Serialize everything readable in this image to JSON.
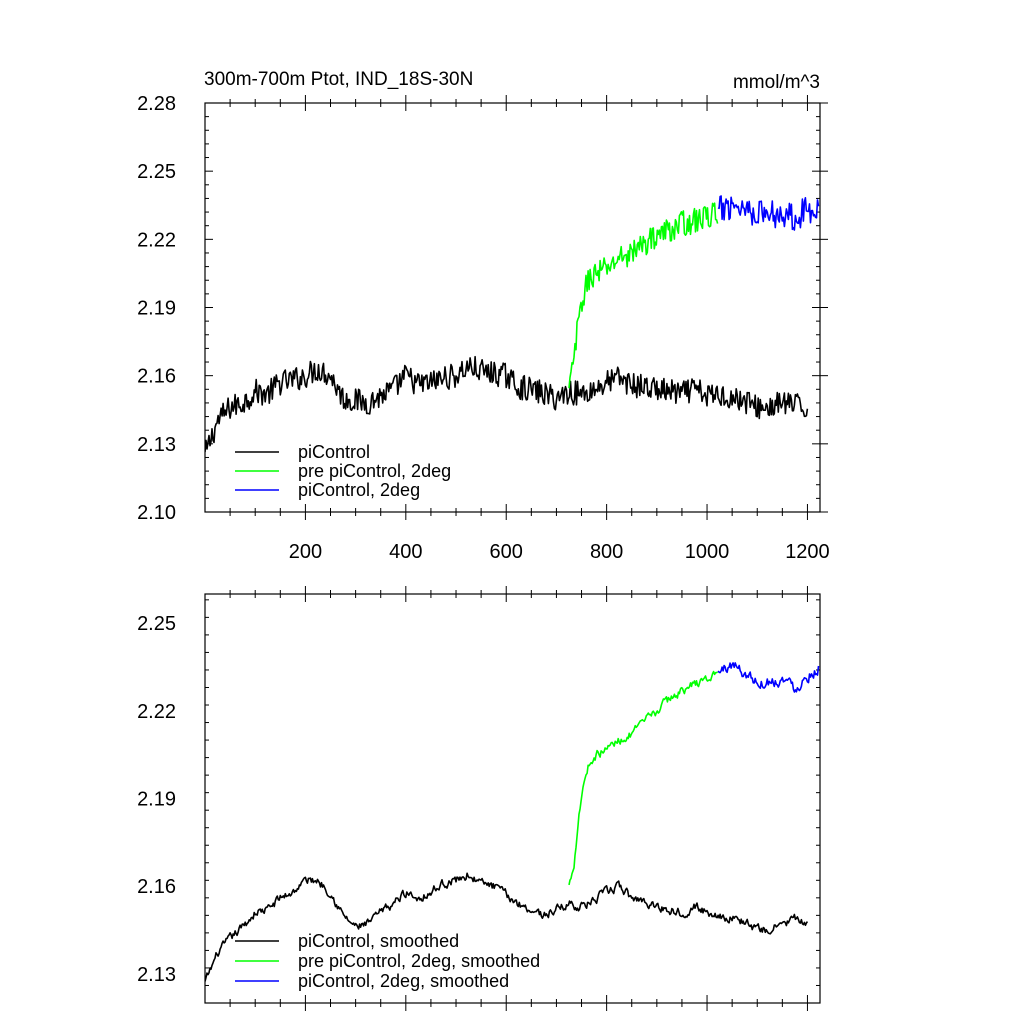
{
  "chart_data": [
    {
      "type": "line",
      "title": "300m-700m Ptot, IND_18S-30N",
      "units": "mmol/m^3",
      "xlim": [
        0,
        1225
      ],
      "ylim": [
        2.1,
        2.28
      ],
      "x_ticks": [
        200,
        400,
        600,
        800,
        1000,
        1200
      ],
      "x_tick_labels": [
        "200",
        "400",
        "600",
        "800",
        "1000",
        "1200"
      ],
      "y_ticks": [
        2.1,
        2.13,
        2.16,
        2.19,
        2.22,
        2.25,
        2.28
      ],
      "y_tick_labels": [
        "2.10",
        "2.13",
        "2.16",
        "2.19",
        "2.22",
        "2.25",
        "2.28"
      ],
      "legend_position": "bottom-left",
      "series": [
        {
          "name": "piControl",
          "color": "#000000",
          "x": [
            0,
            25,
            50,
            75,
            100,
            125,
            150,
            175,
            200,
            225,
            250,
            275,
            300,
            325,
            350,
            375,
            400,
            425,
            450,
            475,
            500,
            525,
            550,
            575,
            600,
            625,
            650,
            675,
            700,
            725,
            750,
            775,
            800,
            825,
            850,
            875,
            900,
            925,
            950,
            975,
            1000,
            1025,
            1050,
            1075,
            1100,
            1125,
            1150,
            1175,
            1200
          ],
          "values": [
            2.125,
            2.14,
            2.146,
            2.148,
            2.153,
            2.152,
            2.157,
            2.158,
            2.16,
            2.163,
            2.16,
            2.15,
            2.149,
            2.148,
            2.151,
            2.154,
            2.16,
            2.156,
            2.157,
            2.159,
            2.16,
            2.164,
            2.162,
            2.161,
            2.16,
            2.155,
            2.154,
            2.152,
            2.15,
            2.153,
            2.152,
            2.154,
            2.157,
            2.159,
            2.156,
            2.155,
            2.154,
            2.153,
            2.152,
            2.154,
            2.151,
            2.152,
            2.15,
            2.149,
            2.146,
            2.146,
            2.148,
            2.147,
            2.145
          ],
          "noise": 0.0055
        },
        {
          "name": "pre piControl, 2deg",
          "color": "#00ff00",
          "x": [
            725,
            735,
            745,
            755,
            765,
            780,
            800,
            825,
            850,
            875,
            900,
            925,
            950,
            975,
            1000,
            1022
          ],
          "values": [
            2.153,
            2.168,
            2.185,
            2.196,
            2.203,
            2.205,
            2.207,
            2.212,
            2.214,
            2.218,
            2.222,
            2.224,
            2.227,
            2.228,
            2.23,
            2.232
          ],
          "noise": 0.0055
        },
        {
          "name": "piControl, 2deg",
          "color": "#0000ff",
          "x": [
            1022,
            1050,
            1075,
            1100,
            1125,
            1150,
            1175,
            1200,
            1222
          ],
          "values": [
            2.232,
            2.236,
            2.234,
            2.232,
            2.231,
            2.232,
            2.23,
            2.233,
            2.235
          ],
          "noise": 0.0065
        }
      ]
    },
    {
      "type": "line",
      "title": "",
      "xlim": [
        0,
        1225
      ],
      "ylim": [
        2.12,
        2.26
      ],
      "x_ticks": [
        200,
        400,
        600,
        800,
        1000,
        1200
      ],
      "y_ticks": [
        2.13,
        2.16,
        2.19,
        2.22,
        2.25
      ],
      "y_tick_labels": [
        "2.13",
        "2.16",
        "2.19",
        "2.22",
        "2.25"
      ],
      "legend_position": "bottom-left",
      "series": [
        {
          "name": "piControl, smoothed",
          "color": "#000000",
          "x": [
            0,
            25,
            50,
            75,
            100,
            125,
            150,
            175,
            200,
            225,
            250,
            275,
            300,
            325,
            350,
            375,
            400,
            425,
            450,
            475,
            500,
            525,
            550,
            575,
            600,
            625,
            650,
            675,
            700,
            725,
            750,
            775,
            800,
            825,
            850,
            875,
            900,
            925,
            950,
            975,
            1000,
            1025,
            1050,
            1075,
            1100,
            1125,
            1150,
            1175,
            1200
          ],
          "values": [
            2.127,
            2.137,
            2.142,
            2.146,
            2.151,
            2.152,
            2.156,
            2.158,
            2.162,
            2.162,
            2.158,
            2.15,
            2.146,
            2.147,
            2.151,
            2.154,
            2.158,
            2.156,
            2.158,
            2.161,
            2.162,
            2.164,
            2.161,
            2.16,
            2.157,
            2.154,
            2.152,
            2.15,
            2.152,
            2.154,
            2.153,
            2.155,
            2.158,
            2.16,
            2.156,
            2.155,
            2.153,
            2.152,
            2.151,
            2.153,
            2.151,
            2.15,
            2.149,
            2.148,
            2.145,
            2.145,
            2.147,
            2.149,
            2.146
          ],
          "noise": 0.0028
        },
        {
          "name": "pre piControl, 2deg, smoothed",
          "color": "#00ff00",
          "x": [
            725,
            735,
            745,
            755,
            765,
            780,
            800,
            825,
            850,
            875,
            900,
            925,
            950,
            975,
            1000,
            1022
          ],
          "values": [
            2.16,
            2.168,
            2.185,
            2.196,
            2.202,
            2.205,
            2.207,
            2.21,
            2.212,
            2.216,
            2.22,
            2.224,
            2.227,
            2.229,
            2.231,
            2.233
          ],
          "noise": 0.0028
        },
        {
          "name": "piControl, 2deg, smoothed",
          "color": "#0000ff",
          "x": [
            1022,
            1050,
            1075,
            1100,
            1125,
            1150,
            1175,
            1200,
            1222
          ],
          "values": [
            2.233,
            2.236,
            2.233,
            2.23,
            2.23,
            2.231,
            2.228,
            2.232,
            2.235
          ],
          "noise": 0.0038
        }
      ]
    }
  ]
}
